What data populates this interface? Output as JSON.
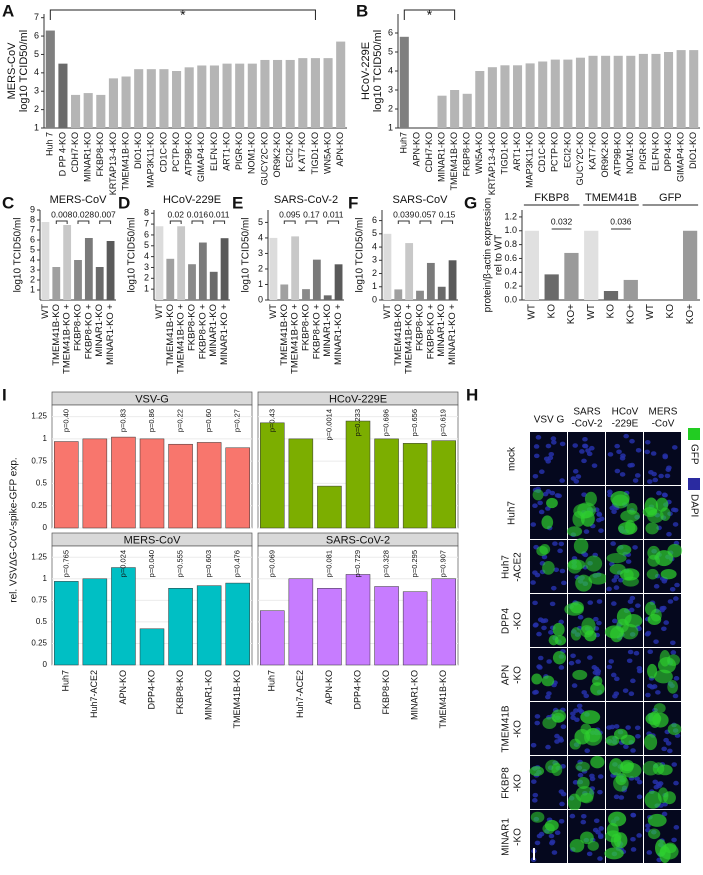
{
  "panel_labels": [
    "A",
    "B",
    "C",
    "D",
    "E",
    "F",
    "G",
    "H",
    "I"
  ],
  "chart_data": [
    {
      "type": "bar",
      "title": "MERS-CoV",
      "ylabel": "log10 TCID50/ml",
      "significance": "*",
      "categories": [
        "Huh 7",
        "D PP 4-KO",
        "CDH7-KO",
        "MINAR1-KO",
        "FKBP8-KO",
        "KRTAP13-4-KO",
        "TMEM41B-KO",
        "DIO1-KO",
        "MAP3K11-KO",
        "CD1C-KO",
        "PCTP-KO",
        "ATP9B-KO",
        "GIMAP4-KO",
        "ELFN-KO",
        "ART1-KO",
        "PIGR-KO",
        "NOM1-KO",
        "GUCY2C-KO",
        "OR9K2-KO",
        "ECI2-KO",
        "K AT7-KO",
        "TIGD1-KO",
        "WN5A-KO",
        "APN-KO"
      ],
      "values": [
        6.3,
        4.5,
        2.8,
        2.9,
        2.8,
        3.7,
        3.8,
        4.2,
        4.2,
        4.2,
        4.1,
        4.3,
        4.4,
        4.4,
        4.5,
        4.5,
        4.5,
        4.7,
        4.7,
        4.7,
        4.8,
        4.8,
        4.8,
        5.7
      ],
      "colors": [
        "#7f7f7f",
        "#6a6a6a",
        "#b5b5b5",
        "#b5b5b5",
        "#b5b5b5",
        "#b5b5b5",
        "#b5b5b5",
        "#b5b5b5",
        "#b5b5b5",
        "#b5b5b5",
        "#b5b5b5",
        "#b5b5b5",
        "#b5b5b5",
        "#b5b5b5",
        "#b5b5b5",
        "#b5b5b5",
        "#b5b5b5",
        "#b5b5b5",
        "#b5b5b5",
        "#b5b5b5",
        "#b5b5b5",
        "#b5b5b5",
        "#b5b5b5",
        "#b5b5b5"
      ],
      "ylim": [
        1,
        7.2
      ],
      "yticks": [
        1,
        2,
        3,
        4,
        5,
        6,
        7
      ]
    },
    {
      "type": "bar",
      "title": "HCoV-229E",
      "ylabel": "log10 TCID50/ml",
      "significance": "*",
      "categories": [
        "Huh7",
        "APN-KO",
        "CDH7-KO",
        "MINAR1-KO",
        "TMEM41B-KO",
        "FKBP8-KO",
        "WN5A-KO",
        "KRTAP13-4-KO",
        "TIGD1-KO",
        "ART1-KO",
        "MAP3K11-KO",
        "CD1C-KO",
        "PCTP-KO",
        "ECI2-KO",
        "GUCY2C-KO",
        "KAT7-KO",
        "OR9K2-KO",
        "ATP9B-KO",
        "NOM1-KO",
        "PIGR-KO",
        "ELFN-KO",
        "DPP4-KO",
        "GIMAP4-KO",
        "DIO1-KO"
      ],
      "values": [
        5.8,
        1,
        1,
        2.7,
        3.0,
        2.8,
        4.0,
        4.2,
        4.3,
        4.3,
        4.4,
        4.5,
        4.6,
        4.6,
        4.7,
        4.8,
        4.8,
        4.8,
        4.8,
        4.9,
        4.9,
        5.0,
        5.1,
        5.1
      ],
      "colors": [
        "#7f7f7f",
        "#b5b5b5",
        "#b5b5b5",
        "#b5b5b5",
        "#b5b5b5",
        "#b5b5b5",
        "#b5b5b5",
        "#b5b5b5",
        "#b5b5b5",
        "#b5b5b5",
        "#b5b5b5",
        "#b5b5b5",
        "#b5b5b5",
        "#b5b5b5",
        "#b5b5b5",
        "#b5b5b5",
        "#b5b5b5",
        "#b5b5b5",
        "#b5b5b5",
        "#b5b5b5",
        "#b5b5b5",
        "#b5b5b5",
        "#b5b5b5",
        "#b5b5b5"
      ],
      "ylim": [
        1,
        7
      ],
      "yticks": [
        1,
        2,
        3,
        4,
        5,
        6
      ]
    },
    {
      "type": "pairbar",
      "title": "MERS-CoV",
      "ylabel": "log10 TCID50/ml",
      "categories": [
        "WT",
        "TMEM41B-KO",
        "TMEM41B-KO +",
        "FKBP8-KO",
        "FKBP8-KO +",
        "MINAR1-KO",
        "MINAR1-KO +"
      ],
      "values": [
        7.8,
        3.3,
        7.5,
        4.0,
        6.2,
        3.3,
        5.9
      ],
      "colors": [
        "#dcdcdc",
        "#a0a0a0",
        "#c8c8c8",
        "#8a8a8a",
        "#7a7a7a",
        "#6a6a6a",
        "#5a5a5a"
      ],
      "p_values": [
        0.008,
        0.028,
        0.007
      ],
      "ylim": [
        0,
        9
      ],
      "yticks": [
        1,
        2,
        3,
        4,
        5,
        6,
        7,
        8,
        9
      ]
    },
    {
      "type": "pairbar",
      "title": "HCoV-229E",
      "ylabel": "log10 TCID50/ml",
      "categories": [
        "WT",
        "TMEM41B-KO",
        "TMEM41B-KO +",
        "FKBP8-KO",
        "FKBP8-KO +",
        "MINAR1-KO",
        "MINAR1-KO +"
      ],
      "values": [
        6.8,
        3.8,
        6.8,
        3.3,
        5.3,
        2.6,
        5.7
      ],
      "colors": [
        "#dcdcdc",
        "#a0a0a0",
        "#c8c8c8",
        "#8a8a8a",
        "#7a7a7a",
        "#6a6a6a",
        "#5a5a5a"
      ],
      "p_values": [
        0.02,
        0.016,
        0.011
      ],
      "ylim": [
        0,
        8.3
      ],
      "yticks": [
        1,
        2,
        3,
        4,
        5,
        6,
        7,
        8
      ]
    },
    {
      "type": "pairbar",
      "title": "SARS-CoV-2",
      "ylabel": "log10 TCID50/ml",
      "categories": [
        "WT",
        "TMEM41B-KO",
        "TMEM41B-KO +",
        "FKBP8-KO",
        "FKBP8-KO +",
        "MINAR1-KO",
        "MINAR1-KO +"
      ],
      "values": [
        4.0,
        1.0,
        4.1,
        0.7,
        2.6,
        0.3,
        2.3
      ],
      "colors": [
        "#dcdcdc",
        "#a0a0a0",
        "#c8c8c8",
        "#8a8a8a",
        "#7a7a7a",
        "#6a6a6a",
        "#5a5a5a"
      ],
      "p_values": [
        0.095,
        0.17,
        0.011
      ],
      "ylim": [
        0,
        5.8
      ],
      "yticks": [
        0,
        1,
        2,
        3,
        4,
        5
      ]
    },
    {
      "type": "pairbar",
      "title": "SARS-CoV",
      "ylabel": "log10 TCID50/ml",
      "categories": [
        "WT",
        "TMEM41B-KO",
        "TMEM41B-KO +",
        "FKBP8-KO",
        "FKBP8-KO +",
        "MINAR1-KO",
        "MINAR1-KO +"
      ],
      "values": [
        5.0,
        0.8,
        4.3,
        0.7,
        2.8,
        1.0,
        3.0
      ],
      "colors": [
        "#dcdcdc",
        "#a0a0a0",
        "#c8c8c8",
        "#8a8a8a",
        "#7a7a7a",
        "#6a6a6a",
        "#5a5a5a"
      ],
      "p_values": [
        0.039,
        0.057,
        0.15
      ],
      "ylim": [
        0,
        6.8
      ],
      "yticks": [
        0,
        1,
        2,
        3,
        4,
        5,
        6
      ]
    },
    {
      "type": "groupbar",
      "ylabel": [
        "protein/β-actin expression",
        "rel to WT"
      ],
      "groups": [
        "FKBP8",
        "TMEM41B",
        "GFP"
      ],
      "categories": [
        "WT",
        "KO",
        "KO+",
        "WT",
        "KO",
        "KO+",
        "WT",
        "KO",
        "KO+"
      ],
      "values": [
        1.0,
        0.37,
        0.68,
        1.0,
        0.13,
        0.29,
        0,
        0,
        1.0
      ],
      "colors": [
        "#e0e0e0",
        "#6a6a6a",
        "#9a9a9a",
        "#e0e0e0",
        "#6a6a6a",
        "#9a9a9a",
        "#e0e0e0",
        "#6a6a6a",
        "#9a9a9a"
      ],
      "p_values": [
        0.032,
        0.036
      ],
      "ylim": [
        0,
        1.3
      ],
      "yticks": [
        {
          "value": 0,
          "label": "0.0"
        },
        0.2,
        0.4,
        0.6,
        0.8,
        {
          "value": 1,
          "label": "1.0"
        },
        1.2
      ]
    },
    {
      "type": "facetbar",
      "ylabel": "rel. VSVΔG-CoV-spike-GFP exp.",
      "categories": [
        "Huh7",
        "Huh7-ACE2",
        "APN-KO",
        "DPP4-KO",
        "FKBP8-KO",
        "MINAR1-KO",
        "TMEM41B-KO"
      ],
      "ylim": [
        0,
        1.38
      ],
      "yticks": [
        0,
        0.25,
        0.5,
        0.75,
        1,
        1.25
      ],
      "panels": [
        {
          "title": "VSV-G",
          "color": "#f8766d",
          "values": [
            0.97,
            1.0,
            1.02,
            1.0,
            0.94,
            0.96,
            0.9
          ],
          "p_labels": [
            "p=0.40",
            null,
            "p=0.83",
            "p=0.86",
            "p=0.22",
            "p=0.60",
            "p=0.27"
          ]
        },
        {
          "title": "HCoV-229E",
          "color": "#7cae00",
          "values": [
            1.18,
            1.0,
            0.47,
            1.2,
            1.0,
            0.95,
            0.98
          ],
          "p_labels": [
            "p=0.43",
            null,
            "p=0.0014",
            "p=0.233",
            "p=0.696",
            "p=0.656",
            "p=0.619"
          ]
        },
        {
          "title": "MERS-CoV",
          "color": "#00bfc4",
          "values": [
            0.97,
            1.0,
            1.13,
            0.42,
            0.89,
            0.92,
            0.95
          ],
          "p_labels": [
            "p=0.765",
            null,
            "p=0.024",
            "p=0.040",
            "p=0.555",
            "p=0.603",
            "p=0.476"
          ]
        },
        {
          "title": "SARS-CoV-2",
          "color": "#c77cff",
          "values": [
            0.63,
            1.0,
            0.89,
            1.05,
            0.91,
            0.85,
            1.0
          ],
          "p_labels": [
            "p=0.069",
            null,
            "p=0.081",
            "p=0.729",
            "p=0.328",
            "p=0.295",
            "p=0.907"
          ]
        }
      ]
    }
  ],
  "panel_h": {
    "columns": [
      [
        "VSV G"
      ],
      [
        "SARS",
        "-CoV-2"
      ],
      [
        "HCoV",
        "-229E"
      ],
      [
        "MERS",
        "-CoV"
      ]
    ],
    "rows": [
      [
        "mock"
      ],
      [
        "Huh7"
      ],
      [
        "Huh7",
        "-ACE2"
      ],
      [
        "DPP4",
        "-KO"
      ],
      [
        "APN",
        "-KO"
      ],
      [
        "TMEM41B",
        "-KO"
      ],
      [
        "FKBP8",
        "-KO"
      ],
      [
        "MINAR1",
        "-KO"
      ]
    ],
    "legend": [
      {
        "name": "GFP",
        "color": "#22cc22"
      },
      {
        "name": "DAPI",
        "color": "#2a2aa0"
      }
    ]
  }
}
